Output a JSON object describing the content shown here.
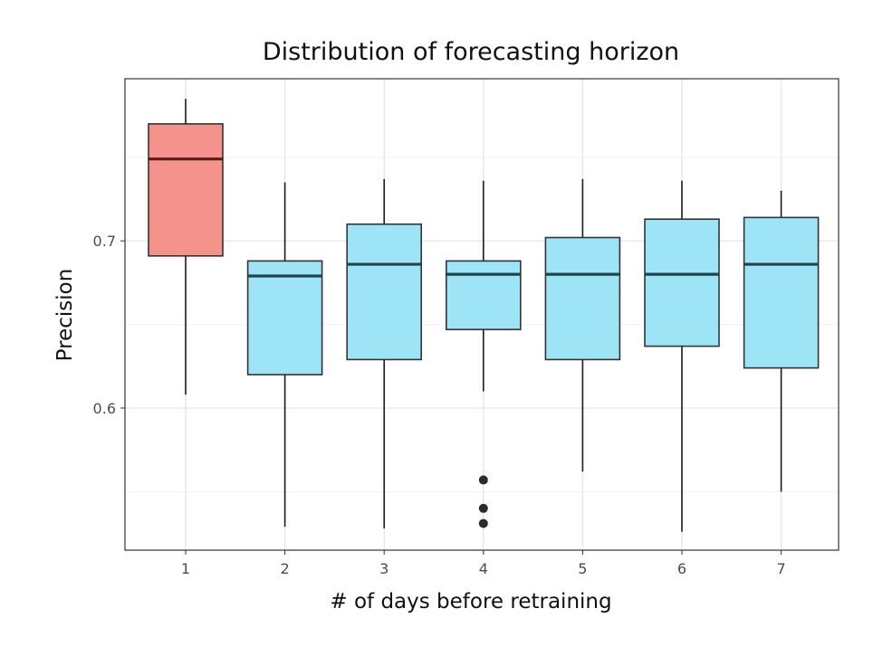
{
  "chart_data": {
    "type": "box",
    "title": "Distribution of forecasting horizon",
    "xlabel": "# of days before retraining",
    "ylabel": "Precision",
    "ylim": [
      0.515,
      0.797
    ],
    "y_ticks": [
      0.6,
      0.7
    ],
    "y_minor_ticks": [
      0.55,
      0.65,
      0.75
    ],
    "grid": true,
    "categories": [
      "1",
      "2",
      "3",
      "4",
      "5",
      "6",
      "7"
    ],
    "boxes": [
      {
        "category": "1",
        "whisker_low": 0.608,
        "q1": 0.691,
        "median": 0.749,
        "q3": 0.77,
        "whisker_high": 0.785,
        "outliers": [],
        "fill": "#f4938c"
      },
      {
        "category": "2",
        "whisker_low": 0.529,
        "q1": 0.62,
        "median": 0.679,
        "q3": 0.688,
        "whisker_high": 0.735,
        "outliers": [],
        "fill": "#9de4f7"
      },
      {
        "category": "3",
        "whisker_low": 0.528,
        "q1": 0.629,
        "median": 0.686,
        "q3": 0.71,
        "whisker_high": 0.737,
        "outliers": [],
        "fill": "#9de4f7"
      },
      {
        "category": "4",
        "whisker_low": 0.61,
        "q1": 0.647,
        "median": 0.68,
        "q3": 0.688,
        "whisker_high": 0.736,
        "outliers": [
          0.557,
          0.54,
          0.531
        ],
        "fill": "#9de4f7"
      },
      {
        "category": "5",
        "whisker_low": 0.562,
        "q1": 0.629,
        "median": 0.68,
        "q3": 0.702,
        "whisker_high": 0.737,
        "outliers": [],
        "fill": "#9de4f7"
      },
      {
        "category": "6",
        "whisker_low": 0.526,
        "q1": 0.637,
        "median": 0.68,
        "q3": 0.713,
        "whisker_high": 0.736,
        "outliers": [],
        "fill": "#9de4f7"
      },
      {
        "category": "7",
        "whisker_low": 0.55,
        "q1": 0.624,
        "median": 0.686,
        "q3": 0.714,
        "whisker_high": 0.73,
        "outliers": [],
        "fill": "#9de4f7"
      }
    ]
  }
}
